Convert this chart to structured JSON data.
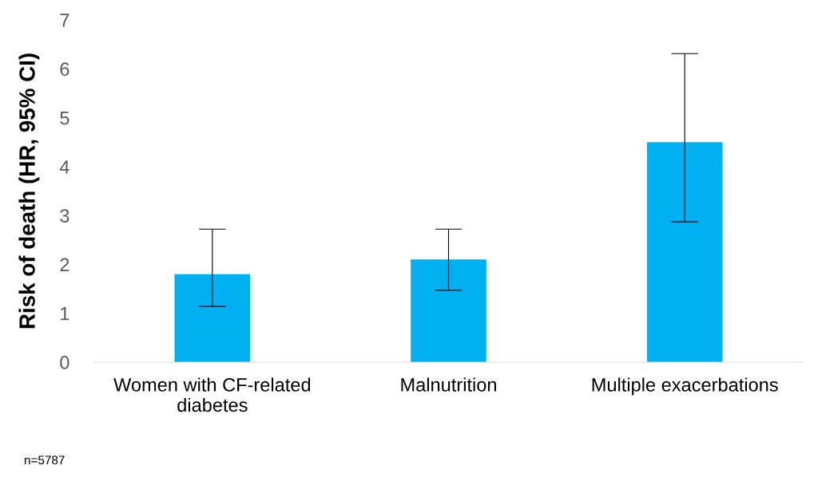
{
  "chart_data": {
    "type": "bar",
    "ylabel": "Risk of death (HR, 95% CI)",
    "categories": [
      "Women with CF-related\ndiabetes",
      "Malnutrition",
      "Multiple exacerbations"
    ],
    "values": [
      1.8,
      2.1,
      4.5
    ],
    "errors": [
      [
        1.14,
        2.72
      ],
      [
        1.47,
        2.72
      ],
      [
        2.87,
        6.31
      ]
    ],
    "color": "#00b0f0",
    "ylim": [
      0,
      7
    ],
    "yticks": [
      0,
      1,
      2,
      3,
      4,
      5,
      6,
      7
    ],
    "grid": false,
    "legend": false,
    "annotations": [
      "n=5787"
    ]
  }
}
